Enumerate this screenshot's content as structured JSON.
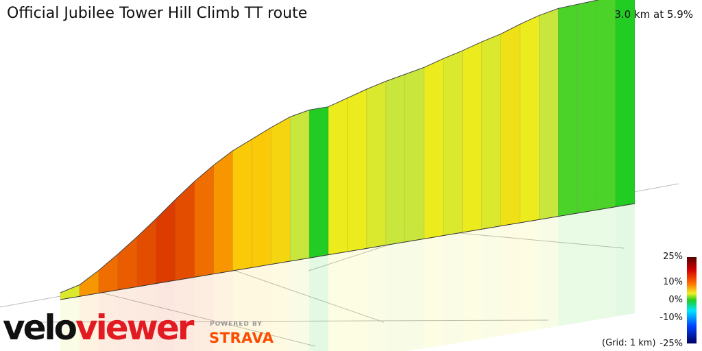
{
  "header": {
    "title": "Official Jubilee Tower Hill Climb TT route",
    "summary": "3.0 km at 5.9%"
  },
  "footer": {
    "grid_note": "(Grid: 1 km)",
    "brand_part1": "velo",
    "brand_part2": "viewer",
    "powered_by": "POWERED BY",
    "strava": "STRAVA"
  },
  "colors": {
    "brand_red": "#e21b23",
    "strava_orange": "#fc4c02"
  },
  "chart_data": {
    "type": "area",
    "title": "Official Jubilee Tower Hill Climb TT route",
    "subtitle": "3.0 km at 5.9%",
    "xlabel": "",
    "ylabel": "",
    "grid": true,
    "grid_spacing_km": 1,
    "distance_km": 3.0,
    "average_gradient_percent": 5.9,
    "profile": {
      "distance_km": [
        0,
        0.1,
        0.2,
        0.3,
        0.4,
        0.5,
        0.6,
        0.7,
        0.8,
        0.9,
        1.0,
        1.1,
        1.2,
        1.3,
        1.4,
        1.5,
        1.6,
        1.7,
        1.8,
        1.9,
        2.0,
        2.1,
        2.2,
        2.3,
        2.4,
        2.5,
        2.6,
        2.7,
        2.8,
        2.9,
        3.0
      ],
      "gradient_percent": [
        7,
        5,
        12,
        14,
        15,
        16,
        17,
        16,
        14,
        12,
        9,
        9,
        8,
        4,
        0,
        6,
        6,
        5,
        4,
        4,
        6,
        5,
        6,
        5,
        7,
        6,
        4,
        1,
        1,
        1,
        0
      ]
    },
    "legend": {
      "title": "",
      "ticks": [
        "25%",
        "10%",
        "0%",
        "-10%",
        "-25%"
      ],
      "tick_values": [
        25,
        10,
        0,
        -10,
        -25
      ]
    }
  }
}
